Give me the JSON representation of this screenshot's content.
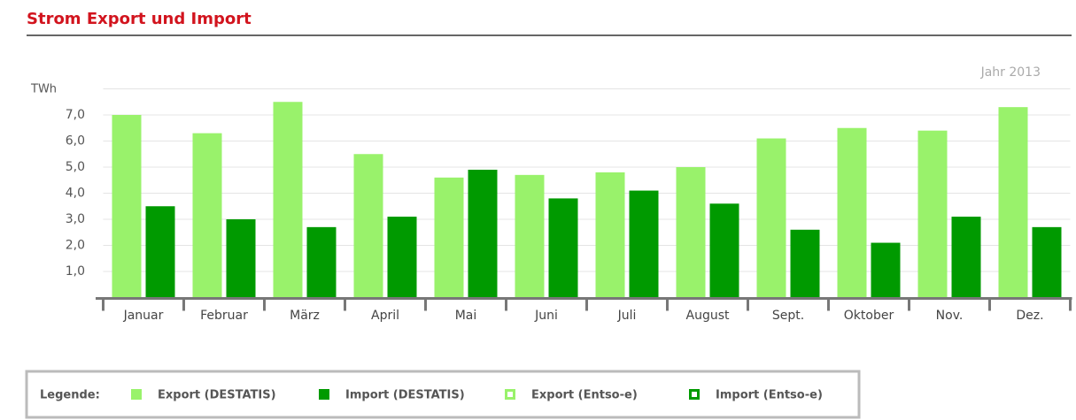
{
  "chart_data": {
    "type": "bar",
    "title": "Strom Export und Import",
    "subtitle": "Jahr 2013",
    "y_label": "TWh",
    "categories": [
      "Januar",
      "Februar",
      "März",
      "April",
      "Mai",
      "Juni",
      "Juli",
      "August",
      "Sept.",
      "Oktober",
      "Nov.",
      "Dez."
    ],
    "series": [
      {
        "name": "Export (DESTATIS)",
        "color": "#99f26b",
        "values": [
          7.0,
          6.3,
          7.5,
          5.5,
          4.6,
          4.7,
          4.8,
          5.0,
          6.1,
          6.5,
          6.4,
          7.3
        ]
      },
      {
        "name": "Import (DESTATIS)",
        "color": "#009a00",
        "values": [
          3.5,
          3.0,
          2.7,
          3.1,
          4.9,
          3.8,
          4.1,
          3.6,
          2.6,
          2.1,
          3.1,
          2.7
        ]
      }
    ],
    "ylim": [
      0,
      8
    ],
    "yticks": [
      {
        "value": 1,
        "label": "1,0"
      },
      {
        "value": 2,
        "label": "2,0"
      },
      {
        "value": 3,
        "label": "3,0"
      },
      {
        "value": 4,
        "label": "4,0"
      },
      {
        "value": 5,
        "label": "5,0"
      },
      {
        "value": 6,
        "label": "6,0"
      },
      {
        "value": 7,
        "label": "7,0"
      }
    ],
    "grid": true,
    "legend": {
      "title": "Legende:",
      "position": "bottom",
      "extra_items": [
        {
          "name": "Export (Entso-e)",
          "color": "#99f26b",
          "marker": "hollow"
        },
        {
          "name": "Import (Entso-e)",
          "color": "#009a00",
          "marker": "hollow"
        }
      ]
    }
  }
}
